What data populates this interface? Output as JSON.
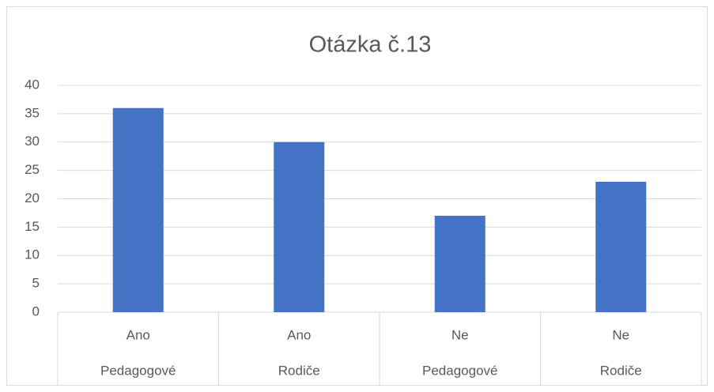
{
  "chart_data": {
    "type": "bar",
    "title": "Otázka č.13",
    "categories": [
      [
        "Ano",
        "Pedagogové"
      ],
      [
        "Ano",
        "Rodiče"
      ],
      [
        "Ne",
        "Pedagogové"
      ],
      [
        "Ne",
        "Rodiče"
      ]
    ],
    "values": [
      36,
      30,
      17,
      23
    ],
    "color": "#4472c4",
    "ylim": [
      0,
      40
    ],
    "yticks": [
      0,
      5,
      10,
      15,
      20,
      25,
      30,
      35,
      40
    ],
    "grid": true
  }
}
